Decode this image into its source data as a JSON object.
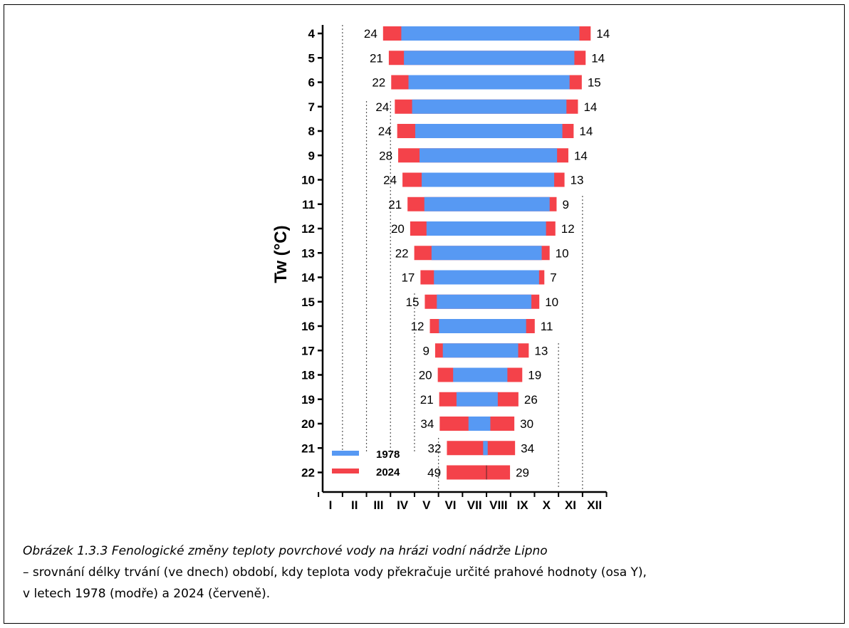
{
  "chart_data": {
    "type": "bar",
    "orientation": "horizontal",
    "ylabel": "Tw (°C)",
    "categories": [
      "4",
      "5",
      "6",
      "7",
      "8",
      "9",
      "10",
      "11",
      "12",
      "13",
      "14",
      "15",
      "16",
      "17",
      "18",
      "19",
      "20",
      "21",
      "22"
    ],
    "month_labels": [
      "I",
      "II",
      "III",
      "IV",
      "V",
      "VI",
      "VII",
      "VIII",
      "IX",
      "X",
      "XI",
      "XII"
    ],
    "x_unit": "month (1 = I … 12 = XII)",
    "xlim": [
      0.5,
      12.5
    ],
    "series": [
      {
        "name": "1978",
        "color": "#5799f3",
        "start": [
          3.95,
          4.06,
          4.25,
          4.4,
          4.53,
          4.71,
          4.8,
          4.91,
          5.0,
          5.21,
          5.31,
          5.43,
          5.52,
          5.68,
          6.11,
          6.25,
          6.75,
          7.36,
          7.5
        ],
        "end": [
          11.37,
          11.16,
          10.96,
          10.83,
          10.66,
          10.44,
          10.32,
          10.13,
          9.98,
          9.8,
          9.69,
          9.37,
          9.15,
          8.82,
          8.37,
          7.97,
          7.66,
          7.55,
          7.5
        ]
      },
      {
        "name": "2024",
        "color": "#f4424a",
        "start": [
          3.19,
          3.43,
          3.53,
          3.68,
          3.78,
          3.82,
          4.0,
          4.21,
          4.32,
          4.49,
          4.75,
          4.93,
          5.14,
          5.36,
          5.47,
          5.53,
          5.55,
          5.85,
          5.84
        ],
        "before_labels": [
          24,
          21,
          22,
          24,
          24,
          28,
          24,
          21,
          20,
          22,
          17,
          15,
          12,
          9,
          20,
          21,
          34,
          32,
          49
        ],
        "end": [
          11.84,
          11.63,
          11.47,
          11.31,
          11.13,
          10.91,
          10.75,
          10.42,
          10.37,
          10.13,
          9.91,
          9.7,
          9.51,
          9.26,
          8.99,
          8.83,
          8.66,
          8.69,
          8.48
        ],
        "after_labels": [
          14,
          14,
          15,
          14,
          14,
          14,
          13,
          9,
          12,
          10,
          7,
          10,
          11,
          13,
          19,
          26,
          30,
          34,
          29
        ]
      }
    ],
    "legend": {
      "placement": "bottom-left",
      "entries": [
        "1978",
        "2024"
      ]
    },
    "grid": "dotted vertical lines at month boundaries"
  },
  "caption": {
    "title": "Obrázek 1.3.3 Fenologické změny teploty povrchové vody na hrázi vodní nádrže Lipno",
    "line1": "– srovnání délky trvání (ve dnech) období, kdy teplota vody překračuje určité prahové hodnoty (osa Y),",
    "line2": "v letech 1978 (modře) a 2024 (červeně)."
  },
  "colors": {
    "blue": "#5799f3",
    "red": "#f4424a",
    "axis": "#000000",
    "grid": "#555555"
  }
}
